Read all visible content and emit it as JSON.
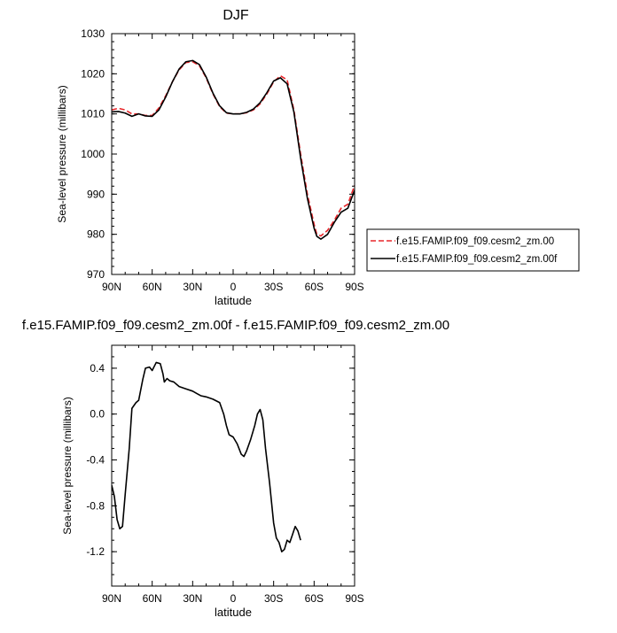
{
  "chart_data": [
    {
      "type": "line",
      "title": "DJF",
      "xlabel": "latitude",
      "ylabel": "Sea-level pressure (millibars)",
      "xlim": [
        90,
        -90
      ],
      "ylim": [
        970,
        1030
      ],
      "x_ticks": [
        90,
        60,
        30,
        0,
        -30,
        -60,
        -90
      ],
      "x_tick_labels": [
        "90N",
        "60N",
        "30N",
        "0",
        "30S",
        "60S",
        "90S"
      ],
      "y_ticks": [
        970,
        980,
        990,
        1000,
        1010,
        1020,
        1030
      ],
      "y_tick_labels": [
        "970",
        "980",
        "990",
        "1000",
        "1010",
        "1020",
        "1030"
      ],
      "legend_position": "right",
      "series": [
        {
          "name": "f.e15.FAMIP.f09_f09.cesm2_zm.00",
          "color": "#e8262a",
          "dash": "dashed",
          "points": [
            [
              90,
              1011.0
            ],
            [
              85,
              1011.4
            ],
            [
              80,
              1011.0
            ],
            [
              75,
              1010.0
            ],
            [
              70,
              1010.0
            ],
            [
              65,
              1009.6
            ],
            [
              60,
              1009.6
            ],
            [
              55,
              1011.5
            ],
            [
              50,
              1014.5
            ],
            [
              45,
              1018.0
            ],
            [
              40,
              1021.0
            ],
            [
              35,
              1022.8
            ],
            [
              30,
              1023.0
            ],
            [
              25,
              1022.0
            ],
            [
              20,
              1019.0
            ],
            [
              15,
              1015.0
            ],
            [
              10,
              1011.8
            ],
            [
              5,
              1010.2
            ],
            [
              0,
              1010.0
            ],
            [
              -5,
              1010.0
            ],
            [
              -10,
              1010.3
            ],
            [
              -15,
              1011.0
            ],
            [
              -20,
              1012.5
            ],
            [
              -25,
              1015.0
            ],
            [
              -30,
              1018.0
            ],
            [
              -35,
              1019.5
            ],
            [
              -40,
              1018.5
            ],
            [
              -45,
              1011.0
            ],
            [
              -50,
              1000.0
            ],
            [
              -55,
              990.0
            ],
            [
              -60,
              982.5
            ],
            [
              -62,
              980.0
            ],
            [
              -65,
              979.6
            ],
            [
              -70,
              981.0
            ],
            [
              -75,
              983.5
            ],
            [
              -80,
              986.5
            ],
            [
              -85,
              987.5
            ],
            [
              -90,
              992.2
            ]
          ]
        },
        {
          "name": "f.e15.FAMIP.f09_f09.cesm2_zm.00f",
          "color": "#000000",
          "dash": "solid",
          "points": [
            [
              90,
              1010.5
            ],
            [
              85,
              1010.6
            ],
            [
              80,
              1010.2
            ],
            [
              75,
              1009.4
            ],
            [
              70,
              1010.0
            ],
            [
              65,
              1009.5
            ],
            [
              60,
              1009.4
            ],
            [
              55,
              1011.0
            ],
            [
              50,
              1014.2
            ],
            [
              45,
              1018.0
            ],
            [
              40,
              1021.2
            ],
            [
              35,
              1023.0
            ],
            [
              30,
              1023.3
            ],
            [
              25,
              1022.3
            ],
            [
              20,
              1019.2
            ],
            [
              15,
              1015.2
            ],
            [
              10,
              1012.0
            ],
            [
              5,
              1010.3
            ],
            [
              0,
              1010.0
            ],
            [
              -5,
              1010.0
            ],
            [
              -10,
              1010.4
            ],
            [
              -15,
              1011.2
            ],
            [
              -20,
              1012.8
            ],
            [
              -25,
              1015.3
            ],
            [
              -30,
              1018.2
            ],
            [
              -35,
              1019.0
            ],
            [
              -40,
              1017.5
            ],
            [
              -45,
              1010.5
            ],
            [
              -50,
              999.0
            ],
            [
              -55,
              989.0
            ],
            [
              -60,
              981.5
            ],
            [
              -62,
              979.5
            ],
            [
              -65,
              978.8
            ],
            [
              -70,
              980.0
            ],
            [
              -75,
              983.0
            ],
            [
              -80,
              985.5
            ],
            [
              -85,
              986.5
            ],
            [
              -90,
              991.0
            ]
          ]
        }
      ]
    },
    {
      "type": "line",
      "title": "f.e15.FAMIP.f09_f09.cesm2_zm.00f - f.e15.FAMIP.f09_f09.cesm2_zm.00",
      "xlabel": "latitude",
      "ylabel": "Sea-level pressure (millibars)",
      "xlim": [
        90,
        -90
      ],
      "ylim": [
        -1.5,
        0.6
      ],
      "x_ticks": [
        90,
        60,
        30,
        0,
        -30,
        -60,
        -90
      ],
      "x_tick_labels": [
        "90N",
        "60N",
        "30N",
        "0",
        "30S",
        "60S",
        "90S"
      ],
      "y_ticks": [
        -1.2,
        -0.8,
        -0.4,
        0.0,
        0.4
      ],
      "y_tick_labels": [
        "-1.2",
        "-0.8",
        "-0.4",
        "0.0",
        "0.4"
      ],
      "series": [
        {
          "color": "#000000",
          "dash": "solid",
          "points": [
            [
              90,
              -0.62
            ],
            [
              88,
              -0.72
            ],
            [
              86,
              -0.92
            ],
            [
              84,
              -1.0
            ],
            [
              82,
              -0.98
            ],
            [
              80,
              -0.7
            ],
            [
              77,
              -0.3
            ],
            [
              75,
              0.05
            ],
            [
              72,
              0.1
            ],
            [
              70,
              0.12
            ],
            [
              67,
              0.3
            ],
            [
              65,
              0.4
            ],
            [
              62,
              0.41
            ],
            [
              60,
              0.38
            ],
            [
              57,
              0.45
            ],
            [
              54,
              0.44
            ],
            [
              52,
              0.35
            ],
            [
              51,
              0.28
            ],
            [
              49,
              0.31
            ],
            [
              47,
              0.29
            ],
            [
              44,
              0.28
            ],
            [
              40,
              0.24
            ],
            [
              35,
              0.22
            ],
            [
              30,
              0.2
            ],
            [
              27,
              0.18
            ],
            [
              24,
              0.16
            ],
            [
              20,
              0.15
            ],
            [
              15,
              0.13
            ],
            [
              10,
              0.1
            ],
            [
              7,
              0.0
            ],
            [
              5,
              -0.1
            ],
            [
              3,
              -0.18
            ],
            [
              0,
              -0.2
            ],
            [
              -3,
              -0.26
            ],
            [
              -6,
              -0.35
            ],
            [
              -8,
              -0.37
            ],
            [
              -10,
              -0.32
            ],
            [
              -13,
              -0.22
            ],
            [
              -16,
              -0.1
            ],
            [
              -18,
              0.0
            ],
            [
              -20,
              0.04
            ],
            [
              -22,
              -0.05
            ],
            [
              -24,
              -0.3
            ],
            [
              -27,
              -0.6
            ],
            [
              -30,
              -0.95
            ],
            [
              -32,
              -1.08
            ],
            [
              -34,
              -1.12
            ],
            [
              -36,
              -1.2
            ],
            [
              -38,
              -1.18
            ],
            [
              -40,
              -1.1
            ],
            [
              -42,
              -1.12
            ],
            [
              -44,
              -1.05
            ],
            [
              -46,
              -0.98
            ],
            [
              -48,
              -1.02
            ],
            [
              -50,
              -1.1
            ]
          ]
        }
      ]
    }
  ]
}
